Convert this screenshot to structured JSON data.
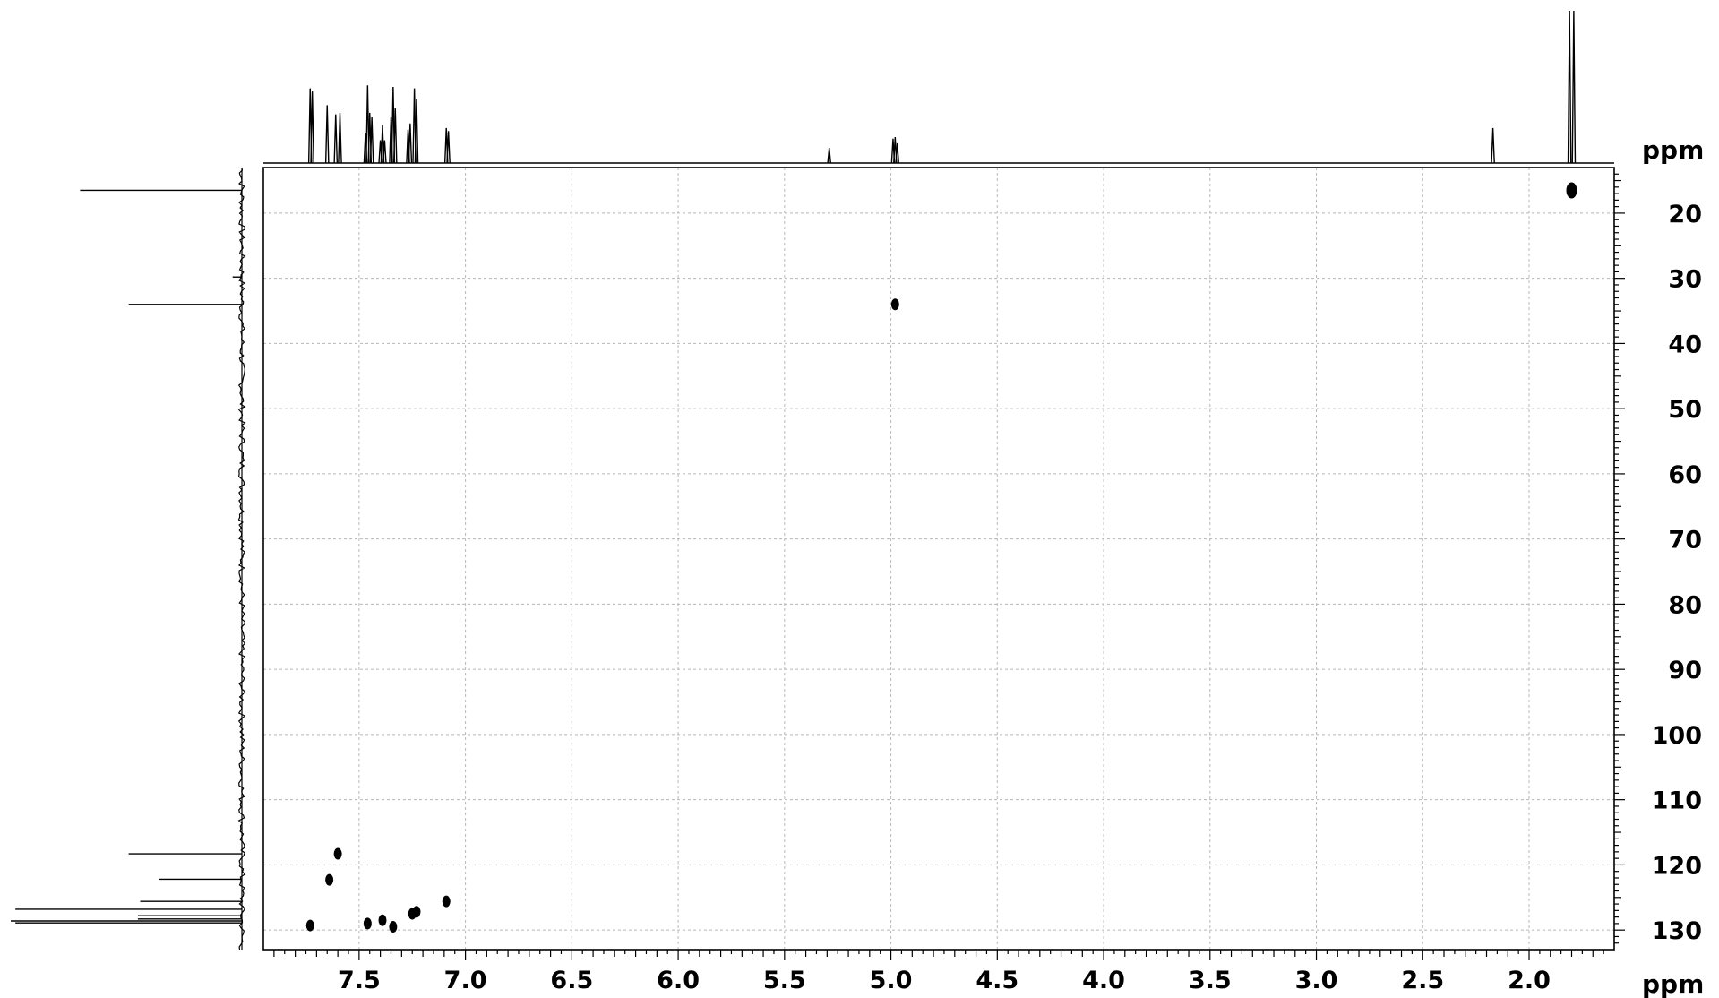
{
  "chart_data": {
    "type": "scatter",
    "subtype": "2D NMR HSQC contour plot",
    "title": "",
    "x_axis": {
      "label": "ppm",
      "range": [
        7.95,
        1.6
      ],
      "reversed": true,
      "ticks": [
        7.5,
        7.0,
        6.5,
        6.0,
        5.5,
        5.0,
        4.5,
        4.0,
        3.5,
        3.0,
        2.5,
        2.0
      ],
      "tick_labels": [
        "7.5",
        "7.0",
        "6.5",
        "6.0",
        "5.5",
        "5.0",
        "4.5",
        "4.0",
        "3.5",
        "3.0",
        "2.5",
        "2.0"
      ]
    },
    "y_axis": {
      "label": "ppm",
      "range": [
        13,
        133
      ],
      "reversed": true,
      "position": "right",
      "ticks": [
        20,
        30,
        40,
        50,
        60,
        70,
        80,
        90,
        100,
        110,
        120,
        130
      ],
      "tick_labels": [
        "20",
        "30",
        "40",
        "50",
        "60",
        "70",
        "80",
        "90",
        "100",
        "110",
        "120",
        "130"
      ]
    },
    "grid": true,
    "legend": "none",
    "cross_peaks": [
      {
        "x": 1.8,
        "y": 16.5
      },
      {
        "x": 4.98,
        "y": 34.0
      },
      {
        "x": 7.6,
        "y": 118.3
      },
      {
        "x": 7.64,
        "y": 122.3
      },
      {
        "x": 7.09,
        "y": 125.6
      },
      {
        "x": 7.23,
        "y": 127.2
      },
      {
        "x": 7.25,
        "y": 127.5
      },
      {
        "x": 7.39,
        "y": 128.5
      },
      {
        "x": 7.46,
        "y": 129.0
      },
      {
        "x": 7.73,
        "y": 129.3
      },
      {
        "x": 7.34,
        "y": 129.5
      }
    ],
    "h1_projection_peaks": [
      {
        "ppm": 7.73,
        "height": 0.49
      },
      {
        "ppm": 7.72,
        "height": 0.47
      },
      {
        "ppm": 7.65,
        "height": 0.38
      },
      {
        "ppm": 7.61,
        "height": 0.32
      },
      {
        "ppm": 7.59,
        "height": 0.33
      },
      {
        "ppm": 7.47,
        "height": 0.2
      },
      {
        "ppm": 7.46,
        "height": 0.51
      },
      {
        "ppm": 7.45,
        "height": 0.33
      },
      {
        "ppm": 7.44,
        "height": 0.3
      },
      {
        "ppm": 7.4,
        "height": 0.15
      },
      {
        "ppm": 7.39,
        "height": 0.25
      },
      {
        "ppm": 7.38,
        "height": 0.15
      },
      {
        "ppm": 7.35,
        "height": 0.3
      },
      {
        "ppm": 7.34,
        "height": 0.5
      },
      {
        "ppm": 7.33,
        "height": 0.36
      },
      {
        "ppm": 7.27,
        "height": 0.22
      },
      {
        "ppm": 7.26,
        "height": 0.26
      },
      {
        "ppm": 7.24,
        "height": 0.49
      },
      {
        "ppm": 7.23,
        "height": 0.42
      },
      {
        "ppm": 7.09,
        "height": 0.23
      },
      {
        "ppm": 7.08,
        "height": 0.21
      },
      {
        "ppm": 5.29,
        "height": 0.1
      },
      {
        "ppm": 4.99,
        "height": 0.16
      },
      {
        "ppm": 4.98,
        "height": 0.17
      },
      {
        "ppm": 4.97,
        "height": 0.13
      },
      {
        "ppm": 2.17,
        "height": 0.23
      },
      {
        "ppm": 1.81,
        "height": 1.0
      },
      {
        "ppm": 1.79,
        "height": 1.0
      }
    ],
    "c13_projection_peaks": [
      {
        "ppm": 16.5,
        "height": 0.7
      },
      {
        "ppm": 29.8,
        "height": 0.04
      },
      {
        "ppm": 34.0,
        "height": 0.49
      },
      {
        "ppm": 118.3,
        "height": 0.49
      },
      {
        "ppm": 122.2,
        "height": 0.36
      },
      {
        "ppm": 125.6,
        "height": 0.44
      },
      {
        "ppm": 126.8,
        "height": 0.98
      },
      {
        "ppm": 127.8,
        "height": 0.45
      },
      {
        "ppm": 128.3,
        "height": 0.45
      },
      {
        "ppm": 128.6,
        "height": 1.0
      },
      {
        "ppm": 128.9,
        "height": 0.98
      }
    ]
  }
}
